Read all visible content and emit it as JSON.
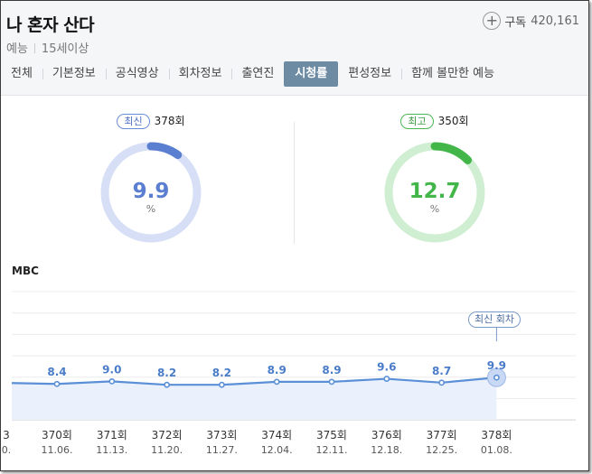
{
  "program": {
    "title": "나 혼자 산다",
    "genre": "예능",
    "rating": "15세이상",
    "subscribe_label": "구독",
    "subscriber_count": "420,161"
  },
  "tabs": [
    "전체",
    "기본정보",
    "공식영상",
    "회차정보",
    "출연진",
    "시청률",
    "편성정보",
    "함께 볼만한 예능"
  ],
  "active_tab": "시청률",
  "gauges": {
    "latest": {
      "tag": "최신",
      "episode": "378회",
      "value": "9.9",
      "unit": "%",
      "fraction": 0.099,
      "color": "#5b7fd0",
      "track": "#d6dff6"
    },
    "best": {
      "tag": "최고",
      "episode": "350회",
      "value": "12.7",
      "unit": "%",
      "fraction": 0.127,
      "color": "#43b649",
      "track": "#cfeed2"
    }
  },
  "chart": {
    "channel": "MBC",
    "latest_label": "최신 회차",
    "partial_first": {
      "episode": "3",
      "date": "0."
    }
  },
  "chart_data": {
    "type": "line",
    "categories": [
      "370회",
      "371회",
      "372회",
      "373회",
      "374회",
      "375회",
      "376회",
      "377회",
      "378회"
    ],
    "dates": [
      "11.06.",
      "11.13.",
      "11.20.",
      "11.27.",
      "12.04.",
      "12.11.",
      "12.18.",
      "12.25.",
      "01.08."
    ],
    "values": [
      8.4,
      9.0,
      8.2,
      8.2,
      8.9,
      8.9,
      9.6,
      8.7,
      9.9
    ],
    "ylim": [
      0,
      30
    ],
    "grid": true
  },
  "colors": {
    "line": "#5b8fd6",
    "fill": "#eaf1fd",
    "active_tab": "#6e8ba4"
  }
}
